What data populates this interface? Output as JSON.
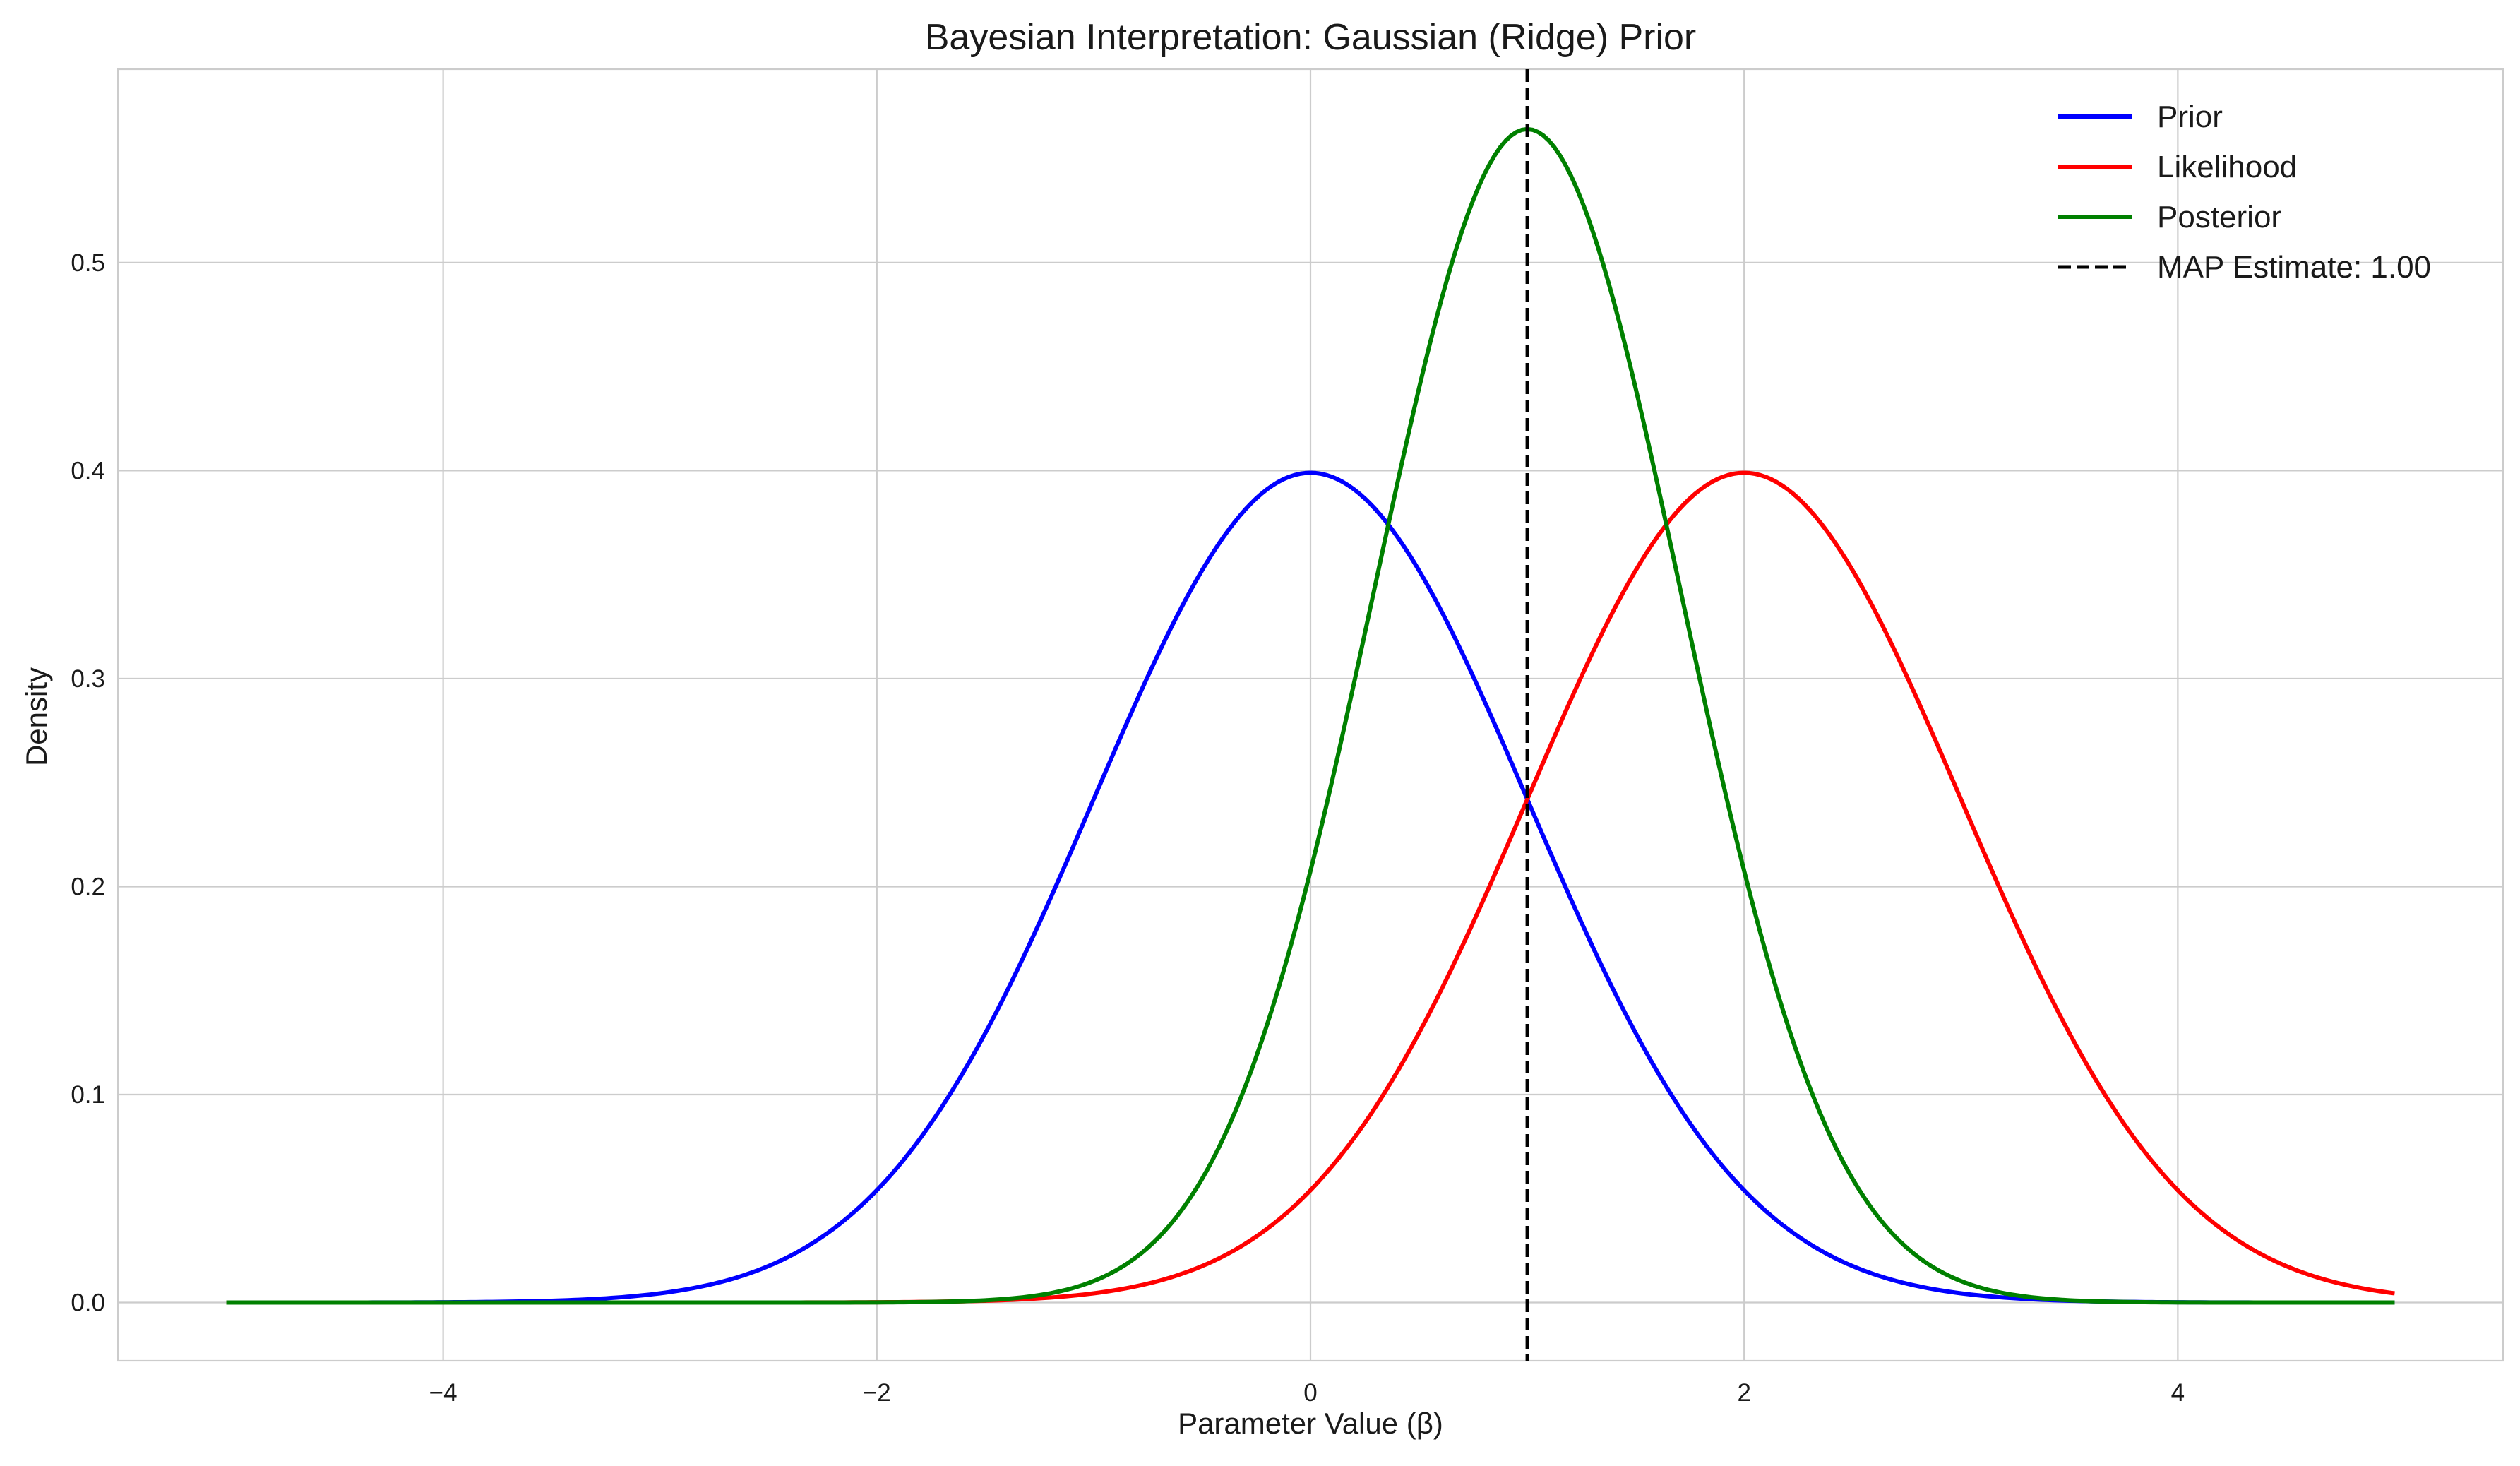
{
  "chart_data": {
    "type": "line",
    "title": "Bayesian Interpretation: Gaussian (Ridge) Prior",
    "xlabel": "Parameter Value (β)",
    "ylabel": "Density",
    "xlim": [
      -5.5,
      5.5
    ],
    "ylim": [
      -0.028,
      0.593
    ],
    "xticks": [
      -4,
      -2,
      0,
      2,
      4
    ],
    "xtick_labels": [
      "−4",
      "−2",
      "0",
      "2",
      "4"
    ],
    "yticks": [
      0.0,
      0.1,
      0.2,
      0.3,
      0.4,
      0.5
    ],
    "ytick_labels": [
      "0.0",
      "0.1",
      "0.2",
      "0.3",
      "0.4",
      "0.5"
    ],
    "grid": true,
    "legend_position": "top-right",
    "x_domain": [
      -5,
      5
    ],
    "series": [
      {
        "name": "Prior",
        "color": "#0000ff",
        "distribution": "normal",
        "mean": 0.0,
        "sd": 1.0
      },
      {
        "name": "Likelihood",
        "color": "#ff0000",
        "distribution": "normal",
        "mean": 2.0,
        "sd": 1.0
      },
      {
        "name": "Posterior",
        "color": "#008000",
        "distribution": "normal",
        "mean": 1.0,
        "sd": 0.7071
      }
    ],
    "vline": {
      "name": "MAP Estimate: 1.00",
      "x": 1.0,
      "color": "#000000",
      "style": "dashed"
    }
  }
}
